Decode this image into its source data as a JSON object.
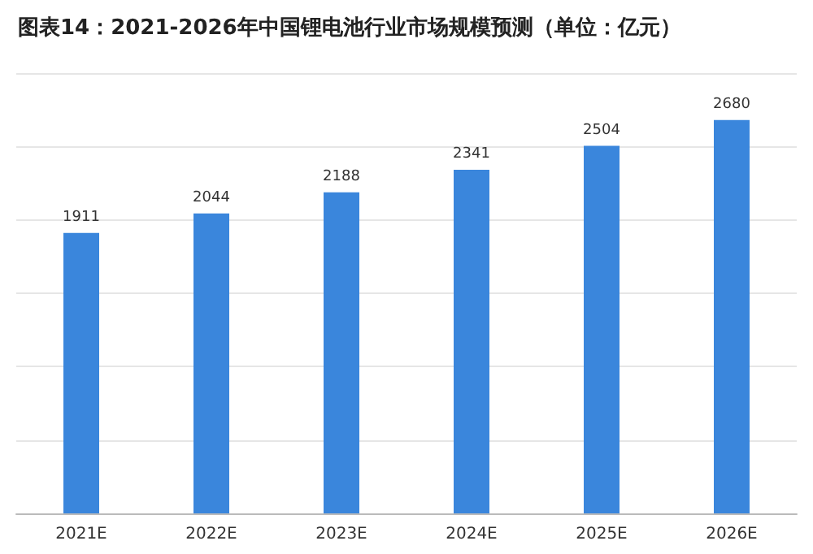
{
  "chart_data": {
    "type": "bar",
    "title": "图表14：2021-2026年中国锂电池行业市场规模预测（单位：亿元）",
    "categories": [
      "2021E",
      "2022E",
      "2023E",
      "2024E",
      "2025E",
      "2026E"
    ],
    "values": [
      1911,
      2044,
      2188,
      2341,
      2504,
      2680
    ],
    "color": "#3a86dc",
    "data_labels": true,
    "grid": "y"
  }
}
